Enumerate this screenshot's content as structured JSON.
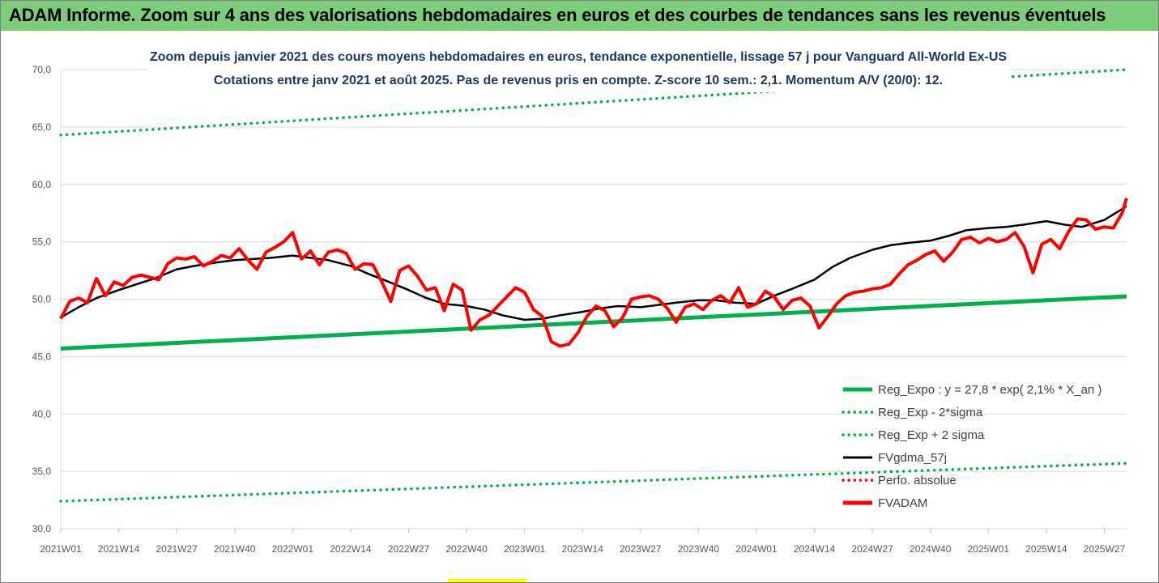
{
  "header": {
    "title": "ADAM Informe. Zoom sur 4 ans des valorisations hebdomadaires en euros et des courbes de tendances sans les revenus éventuels"
  },
  "colors": {
    "header_bg": "#7dcc7b",
    "trend": "#00b050",
    "sma": "#000000",
    "price": "#ff0000",
    "title_text": "#1f3763"
  },
  "chart_data": {
    "type": "line",
    "title": "Zoom depuis janvier 2021 des cours moyens hebdomadaires en euros, tendance exponentielle, lissage 57 j pour Vanguard All-World Ex-US",
    "subtitle": "Cotations entre janv 2021 et août 2025. Pas de revenus pris en compte. Z-score 10 sem.: 2,1. Momentum A/V (20/0): 12.",
    "ylim": [
      30,
      70
    ],
    "yticks": [
      "30,0",
      "35,0",
      "40,0",
      "45,0",
      "50,0",
      "55,0",
      "60,0",
      "65,0",
      "70,0"
    ],
    "x_tick_labels": [
      "2021W01",
      "2021W14",
      "2021W27",
      "2021W40",
      "2022W01",
      "2022W14",
      "2022W27",
      "2022W40",
      "2023W01",
      "2023W14",
      "2023W27",
      "2023W40",
      "2024W01",
      "2024W14",
      "2024W27",
      "2024W40",
      "2025W01",
      "2025W14",
      "2025W27"
    ],
    "grid": "horizontal",
    "legend_position": "lower-right",
    "n_weeks": 240,
    "series": [
      {
        "name": "Reg_Expo : y = 27,8 * exp( 2,1% *  X_an )",
        "style": "solid-thick",
        "color": "#00b050",
        "points": [
          [
            0,
            45.7
          ],
          [
            239,
            50.25
          ]
        ]
      },
      {
        "name": "Reg_Exp - 2*sigma",
        "style": "dotted",
        "color": "#00b050",
        "points": [
          [
            0,
            32.4
          ],
          [
            239,
            35.7
          ]
        ]
      },
      {
        "name": "Reg_Exp + 2 sigma",
        "style": "dotted",
        "color": "#00b050",
        "points": [
          [
            0,
            64.3
          ],
          [
            239,
            70.0
          ]
        ]
      },
      {
        "name": "FVgdma_57j",
        "style": "solid",
        "color": "#000000",
        "points": [
          [
            0,
            48.4
          ],
          [
            4,
            49.3
          ],
          [
            8,
            50.1
          ],
          [
            13,
            50.8
          ],
          [
            17,
            51.3
          ],
          [
            21,
            51.8
          ],
          [
            26,
            52.6
          ],
          [
            30,
            52.9
          ],
          [
            35,
            53.2
          ],
          [
            39,
            53.4
          ],
          [
            43,
            53.5
          ],
          [
            47,
            53.6
          ],
          [
            52,
            53.8
          ],
          [
            56,
            53.6
          ],
          [
            60,
            53.4
          ],
          [
            65,
            52.9
          ],
          [
            69,
            52.2
          ],
          [
            73,
            51.6
          ],
          [
            78,
            50.8
          ],
          [
            82,
            50.1
          ],
          [
            86,
            49.6
          ],
          [
            91,
            49.4
          ],
          [
            95,
            49.1
          ],
          [
            99,
            48.6
          ],
          [
            104,
            48.2
          ],
          [
            108,
            48.3
          ],
          [
            112,
            48.6
          ],
          [
            117,
            48.9
          ],
          [
            121,
            49.2
          ],
          [
            125,
            49.4
          ],
          [
            130,
            49.3
          ],
          [
            134,
            49.5
          ],
          [
            138,
            49.7
          ],
          [
            143,
            49.9
          ],
          [
            147,
            49.9
          ],
          [
            151,
            49.7
          ],
          [
            156,
            49.6
          ],
          [
            160,
            50.3
          ],
          [
            164,
            50.9
          ],
          [
            169,
            51.7
          ],
          [
            173,
            52.8
          ],
          [
            177,
            53.6
          ],
          [
            182,
            54.3
          ],
          [
            186,
            54.7
          ],
          [
            190,
            54.9
          ],
          [
            195,
            55.1
          ],
          [
            199,
            55.5
          ],
          [
            203,
            56.0
          ],
          [
            208,
            56.2
          ],
          [
            212,
            56.3
          ],
          [
            216,
            56.5
          ],
          [
            221,
            56.8
          ],
          [
            225,
            56.5
          ],
          [
            229,
            56.3
          ],
          [
            234,
            56.9
          ],
          [
            239,
            58.1
          ]
        ]
      },
      {
        "name": "Perfo. absolue",
        "style": "dotted-legend-only",
        "color": "#ff0000",
        "points": []
      },
      {
        "name": "FVADAM",
        "style": "solid-thick",
        "color": "#ff0000",
        "points": [
          [
            0,
            48.3
          ],
          [
            2,
            49.8
          ],
          [
            4,
            50.1
          ],
          [
            6,
            49.7
          ],
          [
            8,
            51.8
          ],
          [
            10,
            50.3
          ],
          [
            12,
            51.5
          ],
          [
            14,
            51.2
          ],
          [
            16,
            51.9
          ],
          [
            18,
            52.1
          ],
          [
            20,
            51.9
          ],
          [
            22,
            51.7
          ],
          [
            24,
            53.1
          ],
          [
            26,
            53.6
          ],
          [
            28,
            53.5
          ],
          [
            30,
            53.7
          ],
          [
            32,
            52.9
          ],
          [
            34,
            53.3
          ],
          [
            36,
            53.8
          ],
          [
            38,
            53.6
          ],
          [
            40,
            54.4
          ],
          [
            42,
            53.4
          ],
          [
            44,
            52.6
          ],
          [
            46,
            54.1
          ],
          [
            48,
            54.5
          ],
          [
            50,
            55.0
          ],
          [
            52,
            55.8
          ],
          [
            54,
            53.5
          ],
          [
            56,
            54.2
          ],
          [
            58,
            53.0
          ],
          [
            60,
            54.1
          ],
          [
            62,
            54.3
          ],
          [
            64,
            54.0
          ],
          [
            66,
            52.6
          ],
          [
            68,
            53.1
          ],
          [
            70,
            53.0
          ],
          [
            72,
            51.5
          ],
          [
            74,
            49.8
          ],
          [
            76,
            52.5
          ],
          [
            78,
            52.9
          ],
          [
            80,
            52.0
          ],
          [
            82,
            50.8
          ],
          [
            84,
            51.0
          ],
          [
            86,
            49.0
          ],
          [
            88,
            51.3
          ],
          [
            90,
            50.8
          ],
          [
            92,
            47.3
          ],
          [
            94,
            48.2
          ],
          [
            96,
            48.6
          ],
          [
            98,
            49.4
          ],
          [
            100,
            50.2
          ],
          [
            102,
            51.0
          ],
          [
            104,
            50.6
          ],
          [
            106,
            49.1
          ],
          [
            108,
            48.5
          ],
          [
            110,
            46.3
          ],
          [
            112,
            45.9
          ],
          [
            114,
            46.1
          ],
          [
            116,
            47.1
          ],
          [
            118,
            48.5
          ],
          [
            120,
            49.4
          ],
          [
            122,
            49.0
          ],
          [
            124,
            47.6
          ],
          [
            126,
            48.4
          ],
          [
            128,
            50.0
          ],
          [
            130,
            50.2
          ],
          [
            132,
            50.3
          ],
          [
            134,
            50.0
          ],
          [
            136,
            49.2
          ],
          [
            138,
            48.0
          ],
          [
            140,
            49.3
          ],
          [
            142,
            49.6
          ],
          [
            144,
            49.1
          ],
          [
            146,
            49.9
          ],
          [
            148,
            50.3
          ],
          [
            150,
            49.7
          ],
          [
            152,
            51.0
          ],
          [
            154,
            49.3
          ],
          [
            156,
            49.6
          ],
          [
            158,
            50.7
          ],
          [
            160,
            50.2
          ],
          [
            162,
            49.1
          ],
          [
            164,
            49.9
          ],
          [
            166,
            50.1
          ],
          [
            168,
            49.4
          ],
          [
            170,
            47.5
          ],
          [
            172,
            48.5
          ],
          [
            174,
            49.6
          ],
          [
            176,
            50.3
          ],
          [
            178,
            50.6
          ],
          [
            180,
            50.7
          ],
          [
            182,
            50.9
          ],
          [
            184,
            51.0
          ],
          [
            186,
            51.3
          ],
          [
            188,
            52.2
          ],
          [
            190,
            53.0
          ],
          [
            192,
            53.4
          ],
          [
            194,
            53.9
          ],
          [
            196,
            54.2
          ],
          [
            198,
            53.3
          ],
          [
            200,
            54.1
          ],
          [
            202,
            55.2
          ],
          [
            204,
            55.4
          ],
          [
            206,
            54.9
          ],
          [
            208,
            55.3
          ],
          [
            210,
            55.0
          ],
          [
            212,
            55.2
          ],
          [
            214,
            55.8
          ],
          [
            216,
            54.6
          ],
          [
            218,
            52.3
          ],
          [
            220,
            54.8
          ],
          [
            222,
            55.2
          ],
          [
            224,
            54.4
          ],
          [
            226,
            55.9
          ],
          [
            228,
            57.0
          ],
          [
            230,
            56.9
          ],
          [
            232,
            56.1
          ],
          [
            234,
            56.3
          ],
          [
            236,
            56.2
          ],
          [
            238,
            57.5
          ],
          [
            239,
            58.8
          ]
        ]
      }
    ]
  }
}
